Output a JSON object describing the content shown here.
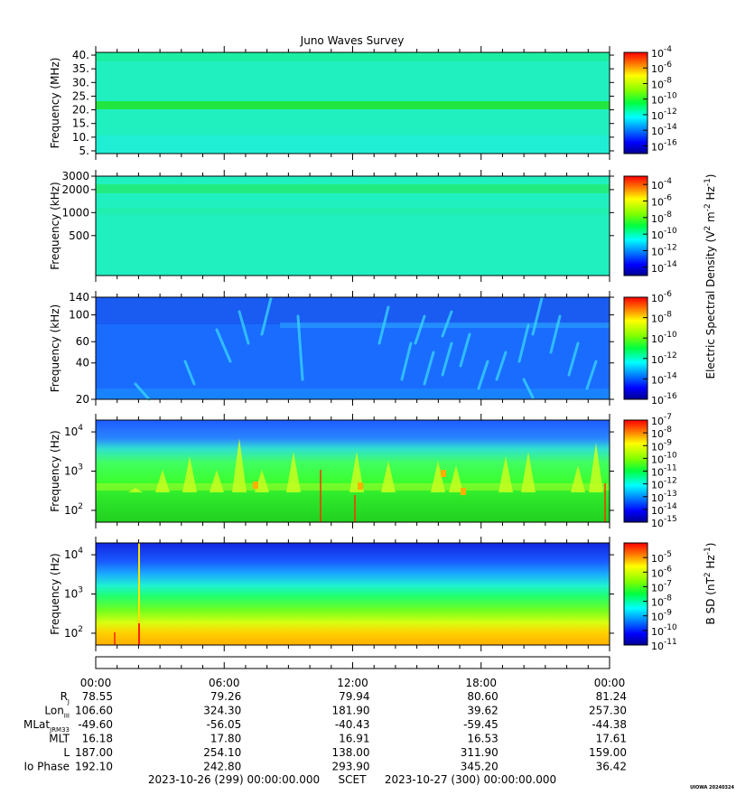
{
  "chart_data": {
    "type": "heatmap",
    "title": "Juno Waves Survey",
    "panels": [
      {
        "id": "p1",
        "ylabel": "Frequency (MHz)",
        "yscale": "linear",
        "ylim": [
          4,
          41
        ],
        "yticks": [
          5,
          10,
          15,
          20,
          25,
          30,
          35,
          40
        ],
        "ytick_labels": [
          "5.",
          "10.",
          "15.",
          "20.",
          "25.",
          "30.",
          "35.",
          "40."
        ],
        "colorbar": {
          "min_exp": -17,
          "max_exp": -4,
          "tick_exps": [
            -4,
            -6,
            -8,
            -10,
            -12,
            -14,
            -16
          ]
        }
      },
      {
        "id": "p2",
        "ylabel": "Frequency (kHz)",
        "yscale": "log",
        "ylim": [
          150,
          3000
        ],
        "yticks": [
          500,
          1000,
          2000,
          3000
        ],
        "ytick_labels": [
          "500",
          "1000",
          "2000",
          "3000"
        ],
        "colorbar": {
          "min_exp": -15,
          "max_exp": -3,
          "tick_exps": [
            -4,
            -6,
            -8,
            -10,
            -12,
            -14
          ]
        }
      },
      {
        "id": "p3",
        "ylabel": "Frequency (kHz)",
        "yscale": "log",
        "ylim": [
          20,
          140
        ],
        "yticks": [
          20,
          40,
          60,
          100,
          140
        ],
        "ytick_labels": [
          "20",
          "40",
          "60",
          "100",
          "140"
        ],
        "colorbar": {
          "min_exp": -16,
          "max_exp": -6,
          "tick_exps": [
            -6,
            -8,
            -10,
            -12,
            -14,
            -16
          ]
        }
      },
      {
        "id": "p4",
        "ylabel": "Frequency (Hz)",
        "yscale": "log",
        "ylim": [
          50,
          20000
        ],
        "yticks": [
          100,
          1000,
          10000
        ],
        "ytick_labels": [
          "10",
          "10",
          "10"
        ],
        "ytick_exps": [
          "2",
          "3",
          "4"
        ],
        "colorbar": {
          "min_exp": -15,
          "max_exp": -7,
          "tick_exps": [
            -7,
            -8,
            -9,
            -10,
            -11,
            -12,
            -13,
            -14,
            -15
          ]
        }
      },
      {
        "id": "p5",
        "ylabel": "Frequency (Hz)",
        "yscale": "log",
        "ylim": [
          50,
          20000
        ],
        "yticks": [
          100,
          1000,
          10000
        ],
        "ytick_labels": [
          "10",
          "10",
          "10"
        ],
        "ytick_exps": [
          "2",
          "3",
          "4"
        ],
        "colorbar": {
          "min_exp": -11,
          "max_exp": -4,
          "tick_exps": [
            -5,
            -6,
            -7,
            -8,
            -9,
            -10,
            -11
          ]
        }
      }
    ],
    "colorbar_label_e": "Electric Spectral Density (V",
    "colorbar_label_e_parts": [
      "Electric Spectral Density (V",
      "2",
      " m",
      "-2",
      " Hz",
      "-1",
      ")"
    ],
    "colorbar_label_b_parts": [
      "B SD (nT",
      "2",
      " Hz",
      "-1",
      ")"
    ],
    "colorbar_base": "10",
    "x_time_labels": [
      "00:00",
      "06:00",
      "12:00",
      "18:00",
      "00:00"
    ],
    "ephemeris": [
      {
        "label": "R",
        "sub": "J",
        "values": [
          "78.55",
          "79.26",
          "79.94",
          "80.60",
          "81.24"
        ]
      },
      {
        "label": "Lon",
        "sub": "III",
        "values": [
          "106.60",
          "324.30",
          "181.90",
          "39.62",
          "257.30"
        ]
      },
      {
        "label": "MLat",
        "sub": "JRM33",
        "values": [
          "-49.60",
          "-56.05",
          "-40.43",
          "-59.45",
          "-44.38"
        ]
      },
      {
        "label": "MLT",
        "sub": "",
        "values": [
          "16.18",
          "17.80",
          "16.91",
          "16.53",
          "17.61"
        ]
      },
      {
        "label": "L",
        "sub": "",
        "values": [
          "187.00",
          "254.10",
          "138.00",
          "311.90",
          "159.00"
        ]
      },
      {
        "label": "Io Phase",
        "sub": "",
        "values": [
          "192.10",
          "242.80",
          "293.90",
          "345.20",
          "36.42"
        ]
      }
    ],
    "time_range_start": "2023-10-26 (299) 00:00:00.000",
    "time_axis_label": "SCET",
    "time_range_end": "2023-10-27 (300) 00:00:00.000",
    "footer_stamp": "UIOWA 20240324"
  }
}
